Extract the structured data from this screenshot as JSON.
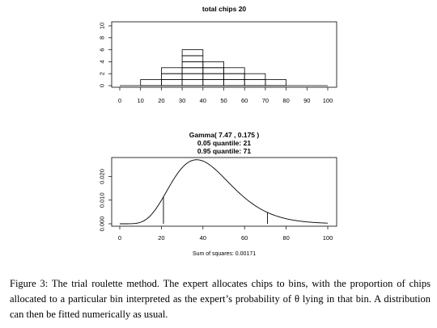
{
  "chart_data": [
    {
      "type": "bar",
      "title": "total chips 20",
      "xlabel": "",
      "ylabel": "",
      "xlim": [
        0,
        100
      ],
      "ylim": [
        0,
        10
      ],
      "x_ticks": [
        0,
        10,
        20,
        30,
        40,
        50,
        60,
        70,
        80,
        90,
        100
      ],
      "y_ticks": [
        0,
        2,
        4,
        6,
        8,
        10
      ],
      "bins": [
        {
          "from": 0,
          "to": 10,
          "chips": 0
        },
        {
          "from": 10,
          "to": 20,
          "chips": 1
        },
        {
          "from": 20,
          "to": 30,
          "chips": 3
        },
        {
          "from": 30,
          "to": 40,
          "chips": 6
        },
        {
          "from": 40,
          "to": 50,
          "chips": 4
        },
        {
          "from": 50,
          "to": 60,
          "chips": 3
        },
        {
          "from": 60,
          "to": 70,
          "chips": 2
        },
        {
          "from": 70,
          "to": 80,
          "chips": 1
        },
        {
          "from": 80,
          "to": 90,
          "chips": 0
        },
        {
          "from": 90,
          "to": 100,
          "chips": 0
        }
      ],
      "style": "stacked chip squares"
    },
    {
      "type": "line",
      "title_lines": [
        "Gamma( 7.47 , 0.175 )",
        "0.05 quantile: 21",
        "0.95 quantile: 71"
      ],
      "xlabel": "Sum of squares: 0.00171",
      "ylabel": "",
      "xlim": [
        0,
        100
      ],
      "ylim": [
        0,
        0.027
      ],
      "x_ticks": [
        0,
        20,
        40,
        60,
        80,
        100
      ],
      "y_ticks": [
        "0.000",
        "0.010",
        "0.020"
      ],
      "y_tick_values": [
        0,
        0.01,
        0.02
      ],
      "distribution": {
        "family": "gamma",
        "shape": 7.47,
        "rate": 0.175
      },
      "quantile_markers": [
        21,
        71
      ]
    }
  ],
  "caption": {
    "label": "Figure 3:",
    "text": "The trial roulette method. The expert allocates chips to bins, with the proportion of chips allocated to a particular bin interpreted as the expert’s probability of θ lying in that bin. A distribution can then be fitted numerically as usual."
  }
}
